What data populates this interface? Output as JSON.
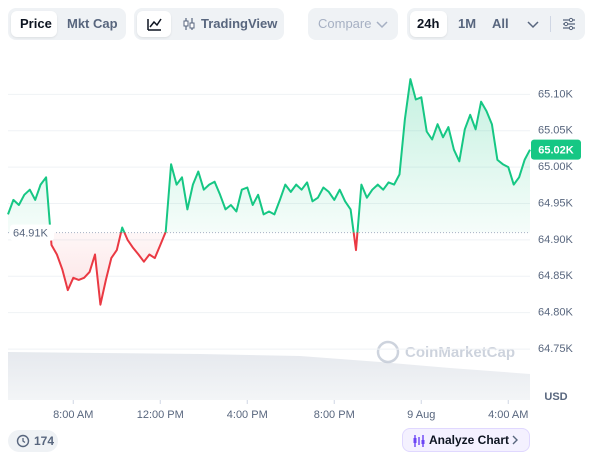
{
  "toolbar": {
    "tabs": [
      "Price",
      "Mkt Cap"
    ],
    "tradingview": "TradingView",
    "compare": "Compare",
    "ranges": [
      "24h",
      "1M",
      "All"
    ]
  },
  "chart_data": {
    "type": "line",
    "x": [
      5.0,
      5.25,
      5.5,
      5.75,
      6.0,
      6.25,
      6.5,
      6.75,
      7.0,
      7.25,
      7.5,
      7.75,
      8.0,
      8.25,
      8.5,
      8.75,
      9.0,
      9.25,
      9.5,
      9.75,
      10.0,
      10.25,
      10.5,
      10.75,
      11.0,
      11.25,
      11.5,
      11.75,
      12.0,
      12.25,
      12.5,
      12.75,
      13.0,
      13.25,
      13.5,
      13.75,
      14.0,
      14.25,
      14.5,
      14.75,
      15.0,
      15.25,
      15.5,
      15.75,
      16.0,
      16.25,
      16.5,
      16.75,
      17.0,
      17.25,
      17.5,
      17.75,
      18.0,
      18.25,
      18.5,
      18.75,
      19.0,
      19.25,
      19.5,
      19.75,
      20.0,
      20.25,
      20.5,
      20.75,
      21.0,
      21.25,
      21.5,
      21.75,
      22.0,
      22.25,
      22.5,
      22.75,
      23.0,
      23.25,
      23.5,
      23.75,
      24.0,
      24.25,
      24.5,
      24.75,
      25.0,
      25.25,
      25.5,
      25.75,
      26.0,
      26.25,
      26.5,
      26.75,
      27.0,
      27.25,
      27.5,
      27.75,
      28.0,
      28.25,
      28.5,
      28.75,
      29.0
    ],
    "values": [
      64935,
      64955,
      64948,
      64962,
      64969,
      64955,
      64976,
      64986,
      64893,
      64880,
      64859,
      64831,
      64848,
      64845,
      64848,
      64856,
      64880,
      64811,
      64845,
      64875,
      64886,
      64917,
      64900,
      64889,
      64880,
      64870,
      64880,
      64875,
      64893,
      64911,
      65004,
      64976,
      64986,
      64942,
      64976,
      64994,
      64969,
      64976,
      64980,
      64962,
      64942,
      64948,
      64939,
      64969,
      64972,
      64948,
      64962,
      64935,
      64939,
      64935,
      64955,
      64976,
      64966,
      64976,
      64969,
      64979,
      64953,
      64958,
      64972,
      64966,
      64955,
      64969,
      64953,
      64942,
      64886,
      64976,
      64958,
      64969,
      64976,
      64969,
      64979,
      64976,
      64990,
      65066,
      65121,
      65093,
      65096,
      65049,
      65038,
      65059,
      65041,
      65055,
      65024,
      65008,
      65052,
      65072,
      65052,
      65090,
      65077,
      65059,
      65010,
      65004,
      65000,
      64976,
      64986,
      65010,
      65024
    ],
    "color_up": "#16c784",
    "color_down": "#ea3943",
    "xlim": [
      5,
      29
    ],
    "xticks": [
      {
        "value": 8,
        "label": "8:00 AM"
      },
      {
        "value": 12,
        "label": "12:00 PM"
      },
      {
        "value": 16,
        "label": "4:00 PM"
      },
      {
        "value": 20,
        "label": "8:00 PM"
      },
      {
        "value": 24,
        "label": "9 Aug"
      },
      {
        "value": 28,
        "label": "4:00 AM"
      }
    ],
    "ylim": [
      64680,
      65150
    ],
    "yticks": [
      {
        "value": 64750,
        "label": "64.75K"
      },
      {
        "value": 64800,
        "label": "64.80K"
      },
      {
        "value": 64850,
        "label": "64.85K"
      },
      {
        "value": 64900,
        "label": "64.90K"
      },
      {
        "value": 64950,
        "label": "64.95K"
      },
      {
        "value": 65000,
        "label": "65.00K"
      },
      {
        "value": 65050,
        "label": "65.05K"
      },
      {
        "value": 65100,
        "label": "65.10K"
      }
    ],
    "grid": true,
    "baseline": {
      "value": 64910,
      "label": "64.91K"
    },
    "price_label": "65.02K",
    "y_label": "USD",
    "watermark": "CoinMarketCap"
  },
  "footer": {
    "badge": "174",
    "button": "Analyze Chart"
  }
}
